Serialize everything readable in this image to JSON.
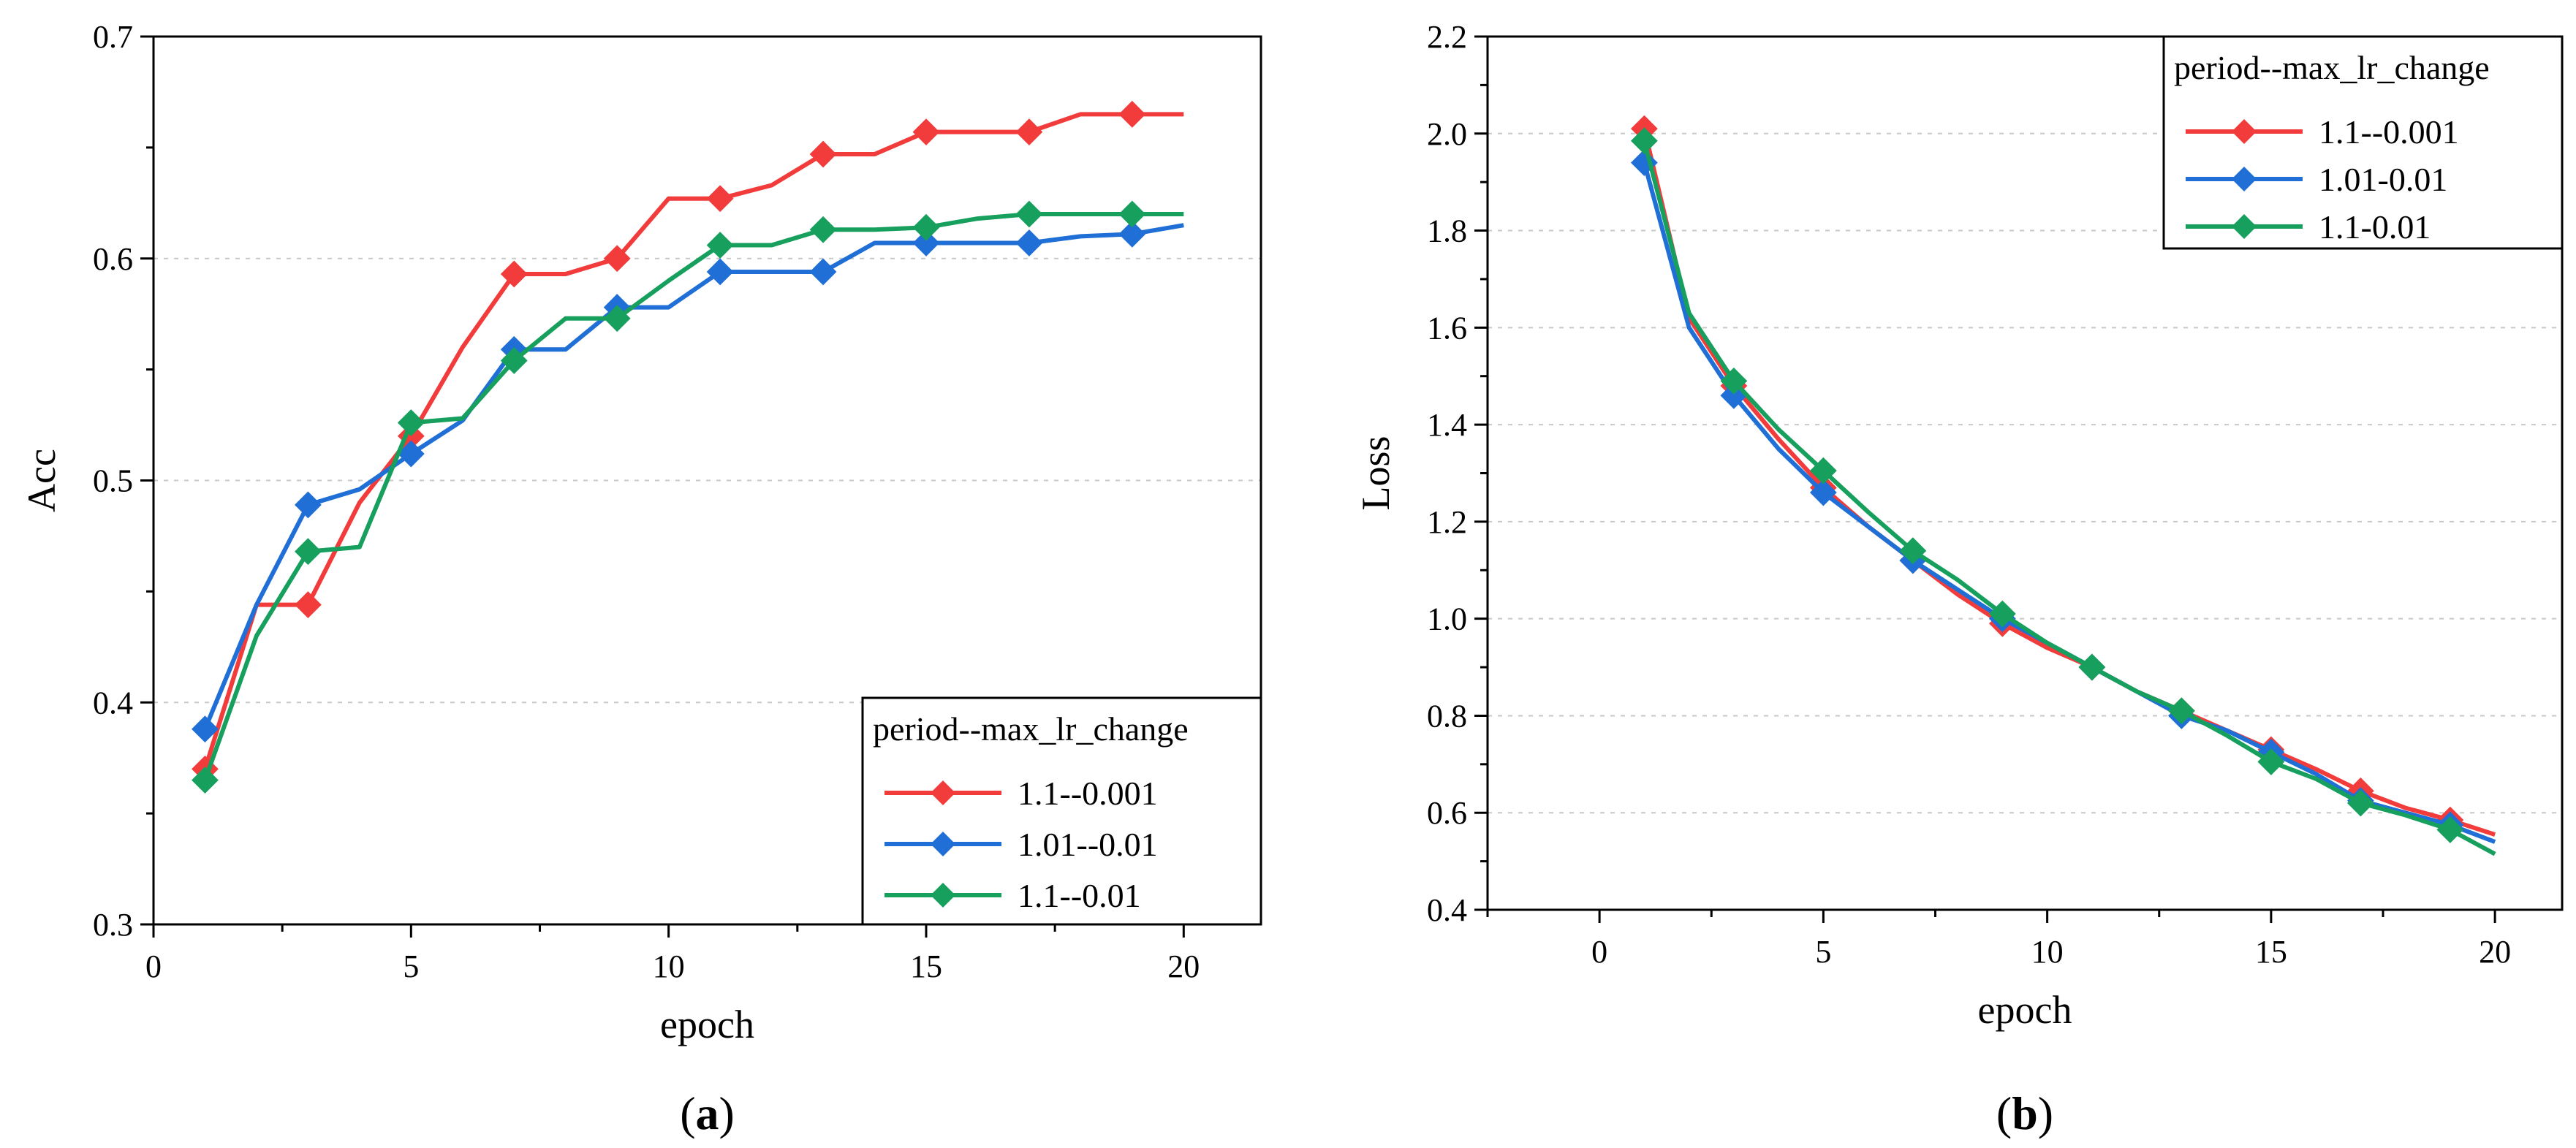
{
  "chart_data": [
    {
      "type": "line",
      "panel_label": "a",
      "xlabel": "epoch",
      "ylabel": "Acc",
      "xlim": [
        0,
        21.5
      ],
      "ylim": [
        0.3,
        0.7
      ],
      "xticks": [
        0,
        5,
        10,
        15,
        20
      ],
      "yticks": [
        0.3,
        0.4,
        0.5,
        0.6,
        0.7
      ],
      "ytick_labels": [
        "0.3",
        "0.4",
        "0.5",
        "0.6",
        "0.7"
      ],
      "grid": true,
      "legend_title": "period--max_lr_change",
      "legend_position": "bottom-right",
      "x": [
        1,
        2,
        3,
        4,
        5,
        6,
        7,
        8,
        9,
        10,
        11,
        12,
        13,
        14,
        15,
        16,
        17,
        18,
        19,
        20
      ],
      "series": [
        {
          "name": "1.1--0.001",
          "color": "#f23c3c",
          "values": [
            0.37,
            0.444,
            0.444,
            0.49,
            0.52,
            0.56,
            0.593,
            0.593,
            0.6,
            0.627,
            0.627,
            0.633,
            0.647,
            0.647,
            0.657,
            0.657,
            0.657,
            0.665,
            0.665,
            0.665
          ]
        },
        {
          "name": "1.01--0.01",
          "color": "#1f6fd6",
          "values": [
            0.388,
            0.444,
            0.489,
            0.496,
            0.512,
            0.527,
            0.559,
            0.559,
            0.578,
            0.578,
            0.594,
            0.594,
            0.594,
            0.607,
            0.607,
            0.607,
            0.607,
            0.61,
            0.611,
            0.615
          ]
        },
        {
          "name": "1.1--0.01",
          "color": "#17a05d",
          "values": [
            0.365,
            0.43,
            0.468,
            0.47,
            0.526,
            0.528,
            0.554,
            0.573,
            0.573,
            0.59,
            0.606,
            0.606,
            0.613,
            0.613,
            0.614,
            0.618,
            0.62,
            0.62,
            0.62,
            0.62
          ]
        }
      ]
    },
    {
      "type": "line",
      "panel_label": "b",
      "xlabel": "epoch",
      "ylabel": "Loss",
      "xlim": [
        -2.5,
        21.5
      ],
      "ylim": [
        0.4,
        2.2
      ],
      "xticks": [
        0,
        5,
        10,
        15,
        20
      ],
      "yticks": [
        0.4,
        0.6,
        0.8,
        1.0,
        1.2,
        1.4,
        1.6,
        1.8,
        2.0,
        2.2
      ],
      "ytick_labels": [
        "0.4",
        "0.6",
        "0.8",
        "1.0",
        "1.2",
        "1.4",
        "1.6",
        "1.8",
        "2.0",
        "2.2"
      ],
      "grid": true,
      "legend_title": "period--max_lr_change",
      "legend_position": "top-right",
      "x": [
        1,
        2,
        3,
        4,
        5,
        6,
        7,
        8,
        9,
        10,
        11,
        12,
        13,
        14,
        15,
        16,
        17,
        18,
        19,
        20
      ],
      "series": [
        {
          "name": "1.1--0.001",
          "color": "#f23c3c",
          "values": [
            2.01,
            1.62,
            1.48,
            1.37,
            1.27,
            1.19,
            1.12,
            1.05,
            0.99,
            0.94,
            0.9,
            0.85,
            0.81,
            0.77,
            0.73,
            0.69,
            0.645,
            0.61,
            0.585,
            0.555
          ]
        },
        {
          "name": "1.01-0.01",
          "color": "#1f6fd6",
          "values": [
            1.94,
            1.6,
            1.46,
            1.35,
            1.26,
            1.19,
            1.12,
            1.06,
            1.0,
            0.95,
            0.9,
            0.85,
            0.8,
            0.77,
            0.725,
            0.68,
            0.625,
            0.6,
            0.575,
            0.54
          ]
        },
        {
          "name": "1.1-0.01",
          "color": "#17a05d",
          "values": [
            1.985,
            1.63,
            1.49,
            1.39,
            1.305,
            1.22,
            1.14,
            1.08,
            1.01,
            0.95,
            0.9,
            0.85,
            0.81,
            0.76,
            0.705,
            0.67,
            0.62,
            0.595,
            0.565,
            0.515
          ]
        }
      ]
    }
  ]
}
